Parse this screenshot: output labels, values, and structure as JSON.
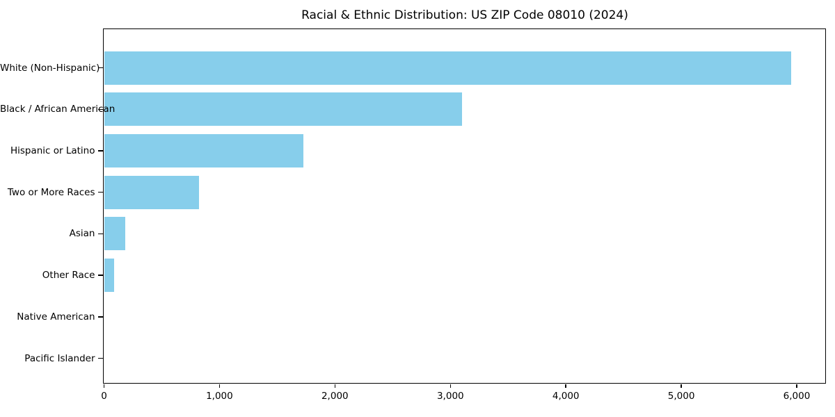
{
  "chart_data": {
    "type": "bar",
    "orientation": "horizontal",
    "title": "Racial & Ethnic Distribution: US ZIP Code 08010 (2024)",
    "categories": [
      "White (Non-Hispanic)",
      "Black / African American",
      "Hispanic or Latino",
      "Two or More Races",
      "Asian",
      "Other Race",
      "Native American",
      "Pacific Islander"
    ],
    "values": [
      5950,
      3100,
      1725,
      820,
      185,
      85,
      0,
      0
    ],
    "xlabel": "",
    "ylabel": "",
    "xlim": [
      0,
      6250
    ],
    "x_ticks": [
      0,
      1000,
      2000,
      3000,
      4000,
      5000,
      6000
    ],
    "x_tick_labels": [
      "0",
      "1,000",
      "2,000",
      "3,000",
      "4,000",
      "5,000",
      "6,000"
    ],
    "bar_color": "#87CEEB",
    "text_color": "#000000",
    "axis_color": "#000000",
    "grid": false,
    "legend": "none",
    "category_order": "largest value at top"
  }
}
